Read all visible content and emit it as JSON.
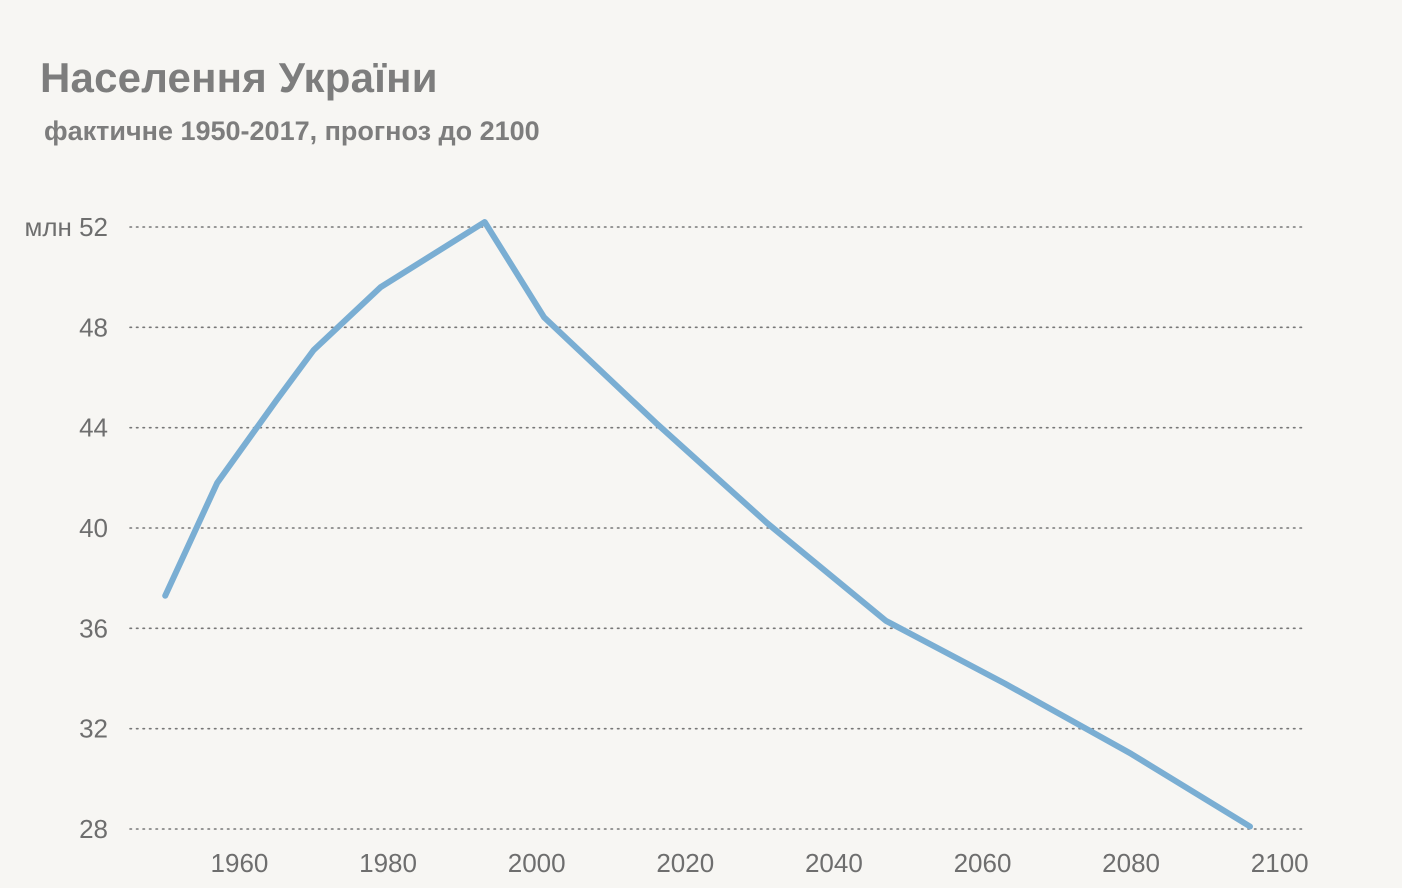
{
  "header": {
    "title": "Населення України",
    "subtitle": "фактичне 1950-2017, прогноз до 2100"
  },
  "colors": {
    "background": "#f7f6f3",
    "line": "#7aaed3",
    "text": "#7d7d7d"
  },
  "chart_data": {
    "type": "line",
    "title": "Населення України",
    "subtitle": "фактичне 1950-2017, прогноз до 2100",
    "xlabel": "",
    "ylabel": "",
    "y_unit_label": "млн",
    "xlim": [
      1945,
      2103
    ],
    "ylim": [
      28,
      52
    ],
    "x_ticks": [
      1960,
      1980,
      2000,
      2020,
      2040,
      2060,
      2080,
      2100
    ],
    "y_ticks": [
      28,
      32,
      36,
      40,
      44,
      48,
      52
    ],
    "grid": "horizontal-dotted",
    "legend": "none",
    "series": [
      {
        "x": [
          1950,
          1957,
          1965,
          1970,
          1979,
          1993,
          2001,
          2016,
          2031,
          2047,
          2063,
          2080,
          2096
        ],
        "values": [
          37.3,
          41.8,
          45.1,
          47.1,
          49.6,
          52.2,
          48.4,
          44.2,
          40.2,
          36.3,
          33.8,
          31.0,
          28.1
        ]
      }
    ]
  }
}
